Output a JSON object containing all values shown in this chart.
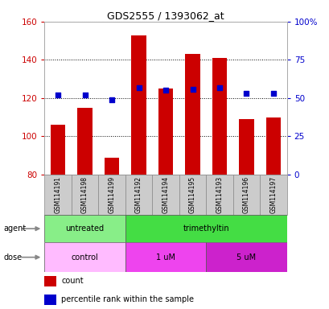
{
  "title": "GDS2555 / 1393062_at",
  "samples": [
    "GSM114191",
    "GSM114198",
    "GSM114199",
    "GSM114192",
    "GSM114194",
    "GSM114195",
    "GSM114193",
    "GSM114196",
    "GSM114197"
  ],
  "counts": [
    106,
    115,
    89,
    153,
    125,
    143,
    141,
    109,
    110
  ],
  "percentile_ranks": [
    52,
    52,
    49,
    57,
    55,
    56,
    57,
    53,
    53
  ],
  "ylim_left": [
    80,
    160
  ],
  "ylim_right": [
    0,
    100
  ],
  "bar_color": "#cc0000",
  "dot_color": "#0000cc",
  "bar_bottom": 80,
  "agent_groups": [
    {
      "label": "untreated",
      "start": 0,
      "end": 3,
      "color": "#88ee88"
    },
    {
      "label": "trimethyltin",
      "start": 3,
      "end": 9,
      "color": "#44dd44"
    }
  ],
  "dose_groups": [
    {
      "label": "control",
      "start": 0,
      "end": 3,
      "color": "#ffbbff"
    },
    {
      "label": "1 uM",
      "start": 3,
      "end": 6,
      "color": "#ee44ee"
    },
    {
      "label": "5 uM",
      "start": 6,
      "end": 9,
      "color": "#cc22cc"
    }
  ],
  "tick_color_left": "#cc0000",
  "tick_color_right": "#0000cc",
  "yticks_left": [
    80,
    100,
    120,
    140,
    160
  ],
  "yticks_right": [
    0,
    25,
    50,
    75,
    100
  ],
  "ytick_labels_right": [
    "0",
    "25",
    "50",
    "75",
    "100%"
  ]
}
